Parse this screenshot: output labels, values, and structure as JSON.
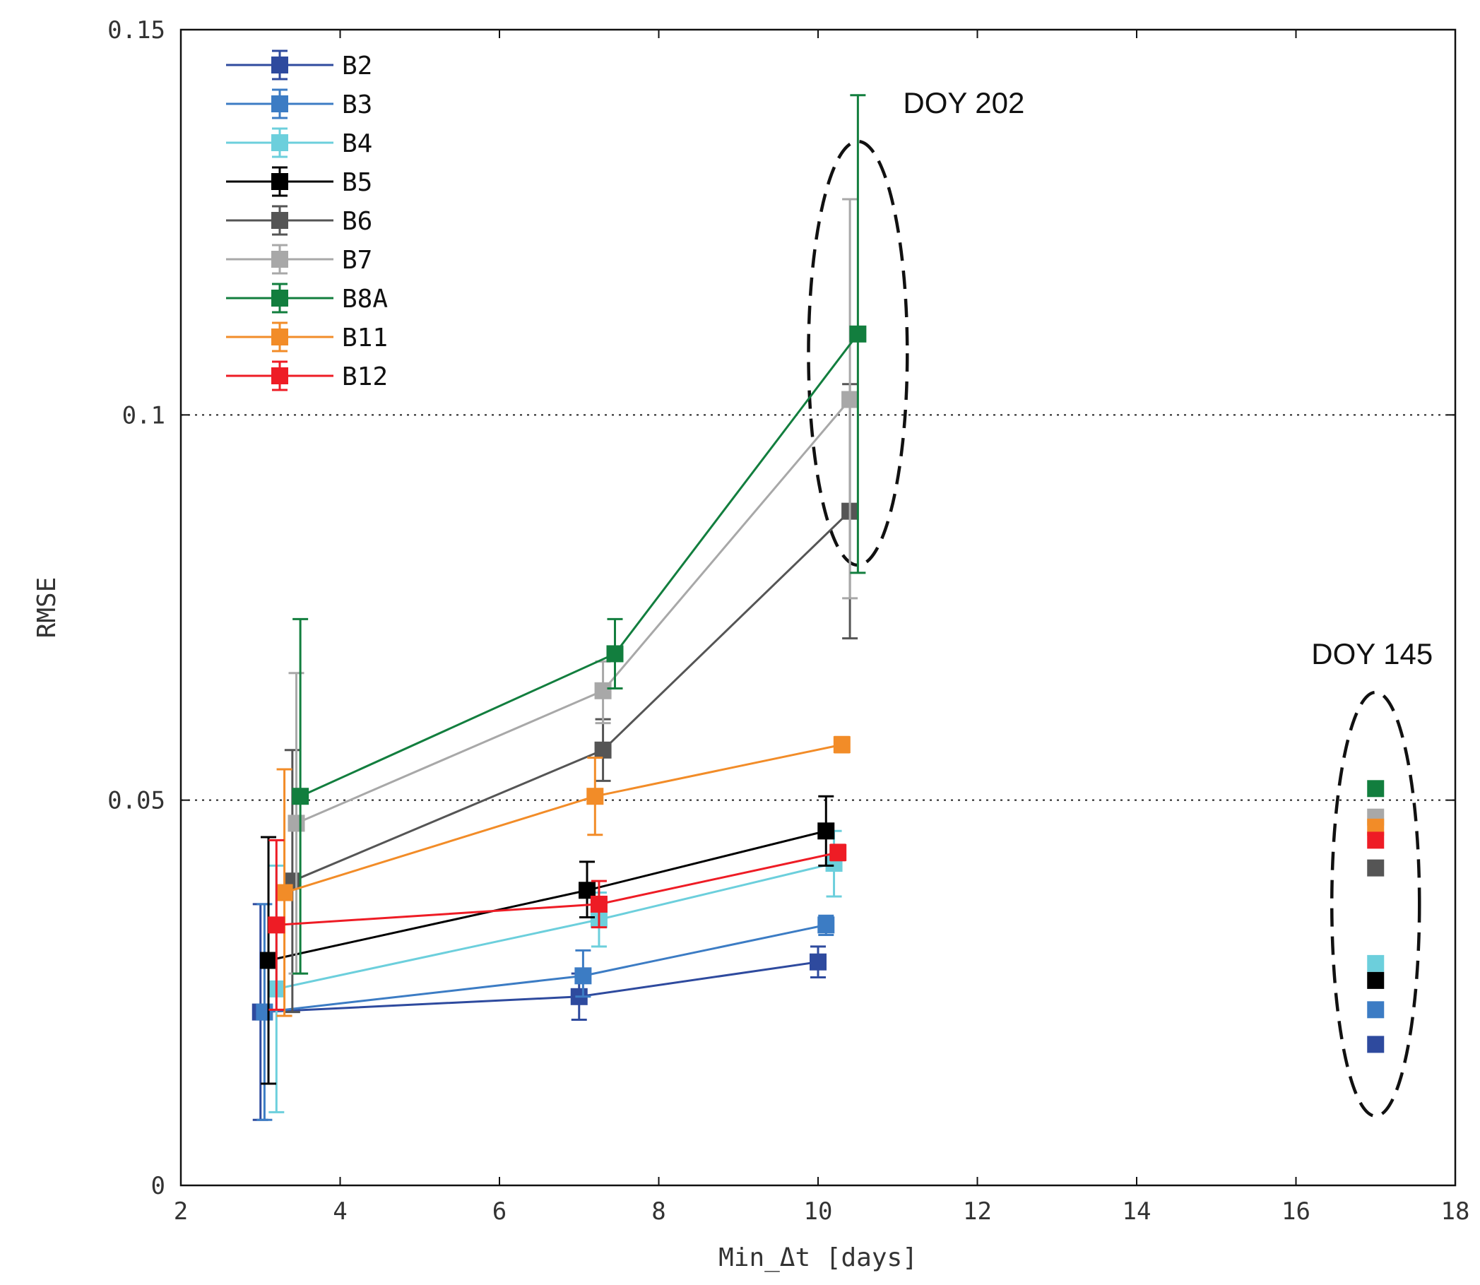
{
  "chart_data": {
    "type": "line",
    "title": "",
    "xlabel": "Min_Δt [days]",
    "ylabel": "RMSE",
    "xlim": [
      2,
      18
    ],
    "ylim": [
      0,
      0.15
    ],
    "x_ticks": [
      "2",
      "4",
      "6",
      "8",
      "10",
      "12",
      "14",
      "16",
      "18"
    ],
    "y_ticks": [
      "0",
      "0.05",
      "0.1",
      "0.15"
    ],
    "reference_lines": [
      0.05,
      0.1
    ],
    "legend_position": "top-left",
    "series": [
      {
        "name": "B2",
        "color": "#2e4a9e",
        "points": [
          {
            "x": 3.0,
            "y": 0.0225,
            "lo": 0.0085,
            "hi": 0.0365
          },
          {
            "x": 7.0,
            "y": 0.0245,
            "lo": 0.0215,
            "hi": 0.0275
          },
          {
            "x": 10.0,
            "y": 0.029,
            "lo": 0.027,
            "hi": 0.031
          }
        ]
      },
      {
        "name": "B3",
        "color": "#3c7cc4",
        "points": [
          {
            "x": 3.05,
            "y": 0.0225,
            "lo": 0.0085,
            "hi": 0.0365
          },
          {
            "x": 7.05,
            "y": 0.0272,
            "lo": 0.0245,
            "hi": 0.0305
          },
          {
            "x": 10.1,
            "y": 0.0338,
            "lo": 0.0325,
            "hi": 0.035
          }
        ]
      },
      {
        "name": "B4",
        "color": "#6ccfdc",
        "points": [
          {
            "x": 3.2,
            "y": 0.0255,
            "lo": 0.0095,
            "hi": 0.0415
          },
          {
            "x": 7.25,
            "y": 0.0345,
            "lo": 0.031,
            "hi": 0.038
          },
          {
            "x": 10.2,
            "y": 0.0418,
            "lo": 0.0375,
            "hi": 0.046
          }
        ]
      },
      {
        "name": "B5",
        "color": "#000000",
        "points": [
          {
            "x": 3.1,
            "y": 0.0292,
            "lo": 0.0132,
            "hi": 0.0452
          },
          {
            "x": 7.1,
            "y": 0.0383,
            "lo": 0.0348,
            "hi": 0.042
          },
          {
            "x": 10.1,
            "y": 0.046,
            "lo": 0.0415,
            "hi": 0.0505
          }
        ]
      },
      {
        "name": "B6",
        "color": "#555555",
        "points": [
          {
            "x": 3.4,
            "y": 0.0395,
            "lo": 0.0225,
            "hi": 0.0565
          },
          {
            "x": 7.3,
            "y": 0.0565,
            "lo": 0.0525,
            "hi": 0.0605
          },
          {
            "x": 10.4,
            "y": 0.0875,
            "lo": 0.071,
            "hi": 0.104
          }
        ]
      },
      {
        "name": "B7",
        "color": "#a8a8a8",
        "points": [
          {
            "x": 3.45,
            "y": 0.047,
            "lo": 0.0275,
            "hi": 0.0665
          },
          {
            "x": 7.3,
            "y": 0.0642,
            "lo": 0.06,
            "hi": 0.068
          },
          {
            "x": 10.4,
            "y": 0.102,
            "lo": 0.0762,
            "hi": 0.128
          }
        ]
      },
      {
        "name": "B8A",
        "color": "#127e3e",
        "points": [
          {
            "x": 3.5,
            "y": 0.0505,
            "lo": 0.0275,
            "hi": 0.0735
          },
          {
            "x": 7.45,
            "y": 0.069,
            "lo": 0.0645,
            "hi": 0.0735
          },
          {
            "x": 10.5,
            "y": 0.1105,
            "lo": 0.0795,
            "hi": 0.1415
          }
        ]
      },
      {
        "name": "B11",
        "color": "#f28c28",
        "points": [
          {
            "x": 3.3,
            "y": 0.038,
            "lo": 0.022,
            "hi": 0.054
          },
          {
            "x": 7.2,
            "y": 0.0505,
            "lo": 0.0455,
            "hi": 0.0555
          },
          {
            "x": 10.3,
            "y": 0.0572,
            "lo": 0.0562,
            "hi": 0.0582
          }
        ]
      },
      {
        "name": "B12",
        "color": "#ee1c25",
        "points": [
          {
            "x": 3.2,
            "y": 0.0338,
            "lo": 0.0228,
            "hi": 0.0448
          },
          {
            "x": 7.25,
            "y": 0.0365,
            "lo": 0.0335,
            "hi": 0.0395
          },
          {
            "x": 10.25,
            "y": 0.0432,
            "lo": 0.0422,
            "hi": 0.0442
          }
        ]
      }
    ],
    "doy145_points": [
      {
        "name": "B8A",
        "x": 17.0,
        "y": 0.0515
      },
      {
        "name": "B7",
        "x": 17.0,
        "y": 0.0478
      },
      {
        "name": "B11",
        "x": 17.0,
        "y": 0.0465
      },
      {
        "name": "B12",
        "x": 17.0,
        "y": 0.0448
      },
      {
        "name": "B6",
        "x": 17.0,
        "y": 0.0412
      },
      {
        "name": "B4",
        "x": 17.0,
        "y": 0.0288
      },
      {
        "name": "B5",
        "x": 17.0,
        "y": 0.0266
      },
      {
        "name": "B3",
        "x": 17.0,
        "y": 0.0228
      },
      {
        "name": "B2",
        "x": 17.0,
        "y": 0.0183
      }
    ],
    "annotations": [
      {
        "id": "doy202",
        "text": "DOY 202",
        "cx": 10.5,
        "cy": 0.108,
        "rx": 0.62,
        "ry": 0.0275
      },
      {
        "id": "doy145",
        "text": "DOY 145",
        "cx": 17.0,
        "cy": 0.0365,
        "rx": 0.55,
        "ry": 0.0275
      }
    ]
  }
}
